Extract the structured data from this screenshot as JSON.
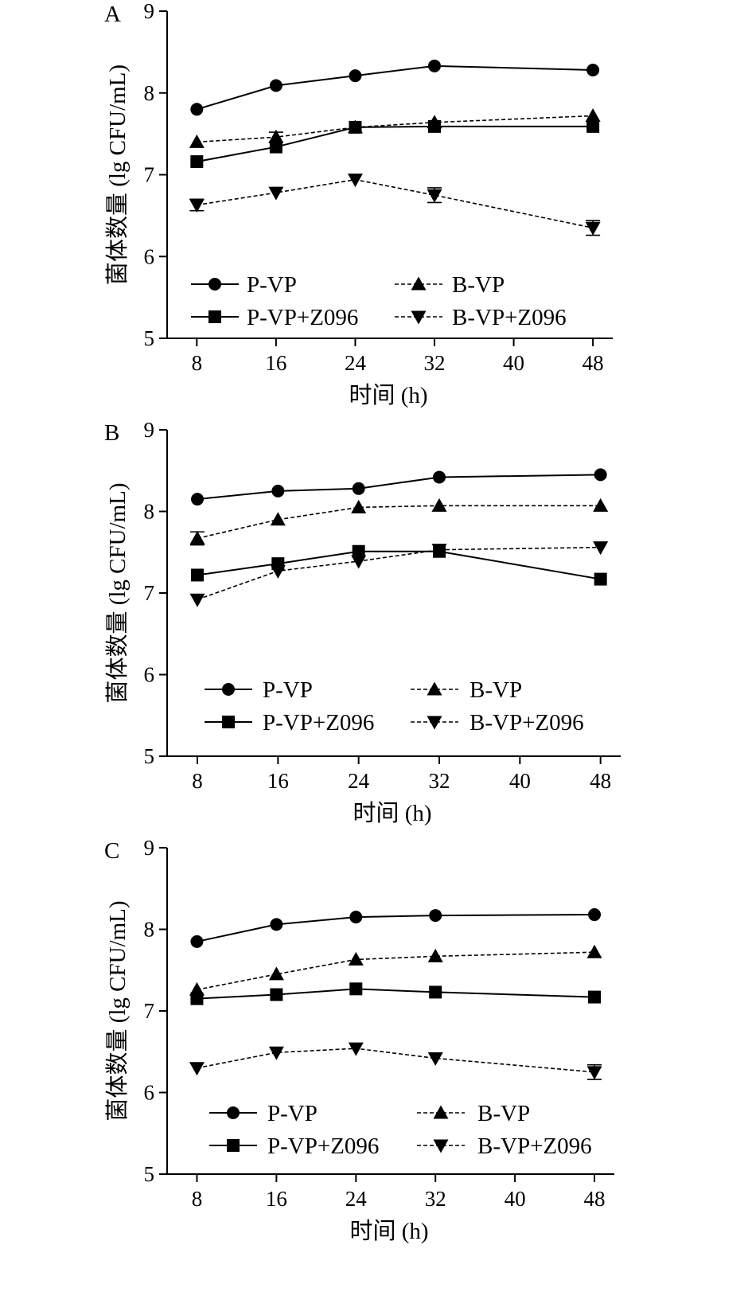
{
  "chart_data": [
    {
      "type": "line",
      "panel_label": "A",
      "xlabel": "时间 (h)",
      "ylabel": "菌体数量 (lg CFU/mL)",
      "x": [
        8,
        16,
        24,
        32,
        48
      ],
      "xticks": [
        8,
        16,
        24,
        32,
        40,
        48
      ],
      "xlim": [
        5,
        50
      ],
      "yticks": [
        5,
        6,
        7,
        8,
        9
      ],
      "ylim": [
        5,
        9
      ],
      "grid": false,
      "legend_placement": "bottom-inside",
      "series": [
        {
          "name": "P-VP",
          "marker": "circle",
          "line": "solid",
          "values": [
            7.8,
            8.09,
            8.21,
            8.33,
            8.28
          ],
          "errors": [
            0,
            0,
            0,
            0,
            0
          ]
        },
        {
          "name": "B-VP",
          "marker": "triangle-up",
          "line": "dashed",
          "values": [
            7.4,
            7.46,
            7.58,
            7.64,
            7.72
          ],
          "errors": [
            0,
            0.06,
            0,
            0,
            0
          ]
        },
        {
          "name": "P-VP+Z096",
          "marker": "square",
          "line": "solid",
          "values": [
            7.16,
            7.34,
            7.58,
            7.59,
            7.59
          ],
          "errors": [
            0,
            0,
            0,
            0,
            0
          ]
        },
        {
          "name": "B-VP+Z096",
          "marker": "triangle-down",
          "line": "dashed",
          "values": [
            6.63,
            6.78,
            6.94,
            6.75,
            6.35
          ],
          "errors": [
            0.07,
            0,
            0,
            0.09,
            0.09
          ]
        }
      ]
    },
    {
      "type": "line",
      "panel_label": "B",
      "xlabel": "时间 (h)",
      "ylabel": "菌体数量 (lg CFU/mL)",
      "x": [
        8,
        16,
        24,
        32,
        48
      ],
      "xticks": [
        8,
        16,
        24,
        32,
        40,
        48
      ],
      "xlim": [
        5,
        50
      ],
      "yticks": [
        5,
        6,
        7,
        8,
        9
      ],
      "ylim": [
        5,
        9
      ],
      "grid": false,
      "legend_placement": "bottom-inside",
      "series": [
        {
          "name": "P-VP",
          "marker": "circle",
          "line": "solid",
          "values": [
            8.15,
            8.25,
            8.28,
            8.42,
            8.45
          ],
          "errors": [
            0,
            0,
            0,
            0,
            0
          ]
        },
        {
          "name": "B-VP",
          "marker": "triangle-up",
          "line": "dashed",
          "values": [
            7.67,
            7.9,
            8.05,
            8.07,
            8.07
          ],
          "errors": [
            0.08,
            0,
            0,
            0,
            0
          ]
        },
        {
          "name": "P-VP+Z096",
          "marker": "square",
          "line": "solid",
          "values": [
            7.22,
            7.36,
            7.51,
            7.51,
            7.17
          ],
          "errors": [
            0,
            0,
            0,
            0,
            0
          ]
        },
        {
          "name": "B-VP+Z096",
          "marker": "triangle-down",
          "line": "dashed",
          "values": [
            6.92,
            7.27,
            7.39,
            7.53,
            7.56
          ],
          "errors": [
            0,
            0,
            0,
            0,
            0
          ]
        }
      ]
    },
    {
      "type": "line",
      "panel_label": "C",
      "xlabel": "时间 (h)",
      "ylabel": "菌体数量 (lg CFU/mL)",
      "x": [
        8,
        16,
        24,
        32,
        48
      ],
      "xticks": [
        8,
        16,
        24,
        32,
        40,
        48
      ],
      "xlim": [
        5,
        50
      ],
      "yticks": [
        5,
        6,
        7,
        8,
        9
      ],
      "ylim": [
        5,
        9
      ],
      "grid": false,
      "legend_placement": "bottom-inside",
      "series": [
        {
          "name": "P-VP",
          "marker": "circle",
          "line": "solid",
          "values": [
            7.85,
            8.06,
            8.15,
            8.17,
            8.18
          ],
          "errors": [
            0,
            0,
            0,
            0,
            0
          ]
        },
        {
          "name": "B-VP",
          "marker": "triangle-up",
          "line": "dashed",
          "values": [
            7.26,
            7.45,
            7.63,
            7.67,
            7.72
          ],
          "errors": [
            0,
            0,
            0,
            0,
            0
          ]
        },
        {
          "name": "P-VP+Z096",
          "marker": "square",
          "line": "solid",
          "values": [
            7.15,
            7.2,
            7.27,
            7.23,
            7.17
          ],
          "errors": [
            0,
            0,
            0,
            0,
            0
          ]
        },
        {
          "name": "B-VP+Z096",
          "marker": "triangle-down",
          "line": "dashed",
          "values": [
            6.3,
            6.49,
            6.54,
            6.42,
            6.25
          ],
          "errors": [
            0,
            0,
            0,
            0,
            0.09
          ]
        }
      ]
    }
  ]
}
